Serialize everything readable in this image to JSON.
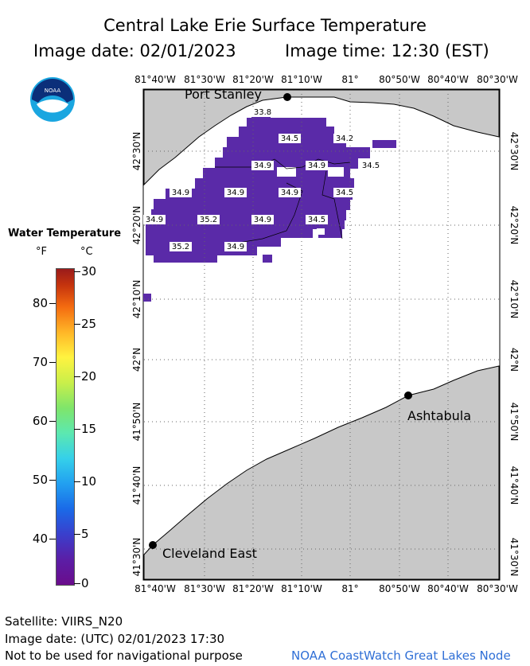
{
  "title": "Central Lake Erie Surface Temperature",
  "image_date": "Image date: 02/01/2023",
  "image_time": "Image time: 12:30 (EST)",
  "logo_text": "NOAA",
  "lon_labels": [
    "81°40'W",
    "81°30'W",
    "81°20'W",
    "81°10'W",
    "81°",
    "80°50'W",
    "80°40'W",
    "80°30'W"
  ],
  "lat_labels": [
    "42°30'N",
    "42°20'N",
    "42°10'N",
    "42°N",
    "41°50'N",
    "41°40'N",
    "41°30'N"
  ],
  "places": [
    {
      "name": "Port Stanley"
    },
    {
      "name": "Ashtabula"
    },
    {
      "name": "Cleveland East"
    }
  ],
  "temperature_unit": "°F",
  "temperature_labels": [
    "33.8",
    "34.5",
    "34.2",
    "34.9",
    "34.9",
    "34.5",
    "34.9",
    "34.9",
    "34.9",
    "34.5",
    "34.9",
    "35.2",
    "34.9",
    "34.5",
    "35.2",
    "34.9"
  ],
  "legend": {
    "title": "Water Temperature",
    "unit_f": "°F",
    "unit_c": "°C",
    "f_labels": [
      "80",
      "70",
      "60",
      "50",
      "40"
    ],
    "c_labels": [
      "30",
      "25",
      "20",
      "15",
      "10",
      "5",
      "0"
    ],
    "range_c": [
      0,
      30
    ]
  },
  "colors": {
    "land": "#c8c8c8",
    "water_cold": "#5a2aa8",
    "grid": "#888888",
    "link": "#2f6fd6"
  },
  "footer": {
    "satellite": "Satellite: VIIRS_N20",
    "utc_date": "Image date: (UTC) 02/01/2023  17:30",
    "disclaimer": "Not to be used for navigational purpose",
    "node": "NOAA CoastWatch Great Lakes Node"
  }
}
